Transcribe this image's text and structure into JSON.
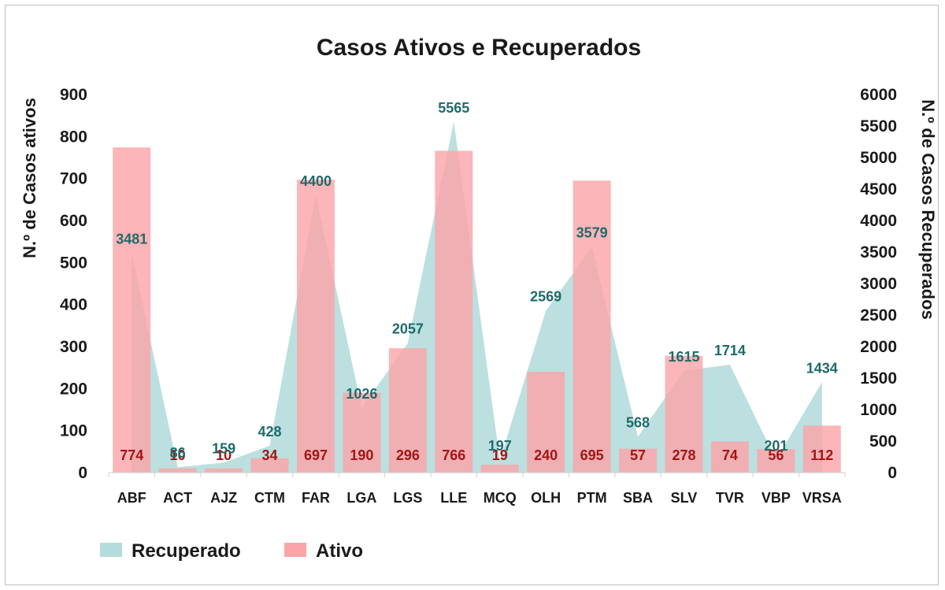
{
  "chart_data": {
    "type": "bar",
    "title": "Casos Ativos e Recuperados",
    "ylabel_left": "N.º de Casos ativos",
    "ylabel_right": "N.º de Casos Recuperados",
    "ylim_left": [
      0,
      900
    ],
    "ylim_right": [
      0,
      6000
    ],
    "yticks_left": [
      "0",
      "100",
      "200",
      "300",
      "400",
      "500",
      "600",
      "700",
      "800",
      "900"
    ],
    "yticks_right": [
      "0",
      "500",
      "1000",
      "1500",
      "2000",
      "2500",
      "3000",
      "3500",
      "4000",
      "4500",
      "5000",
      "5500",
      "6000"
    ],
    "categories": [
      "ABF",
      "ACT",
      "AJZ",
      "CTM",
      "FAR",
      "LGA",
      "LGS",
      "LLE",
      "MCQ",
      "OLH",
      "PTM",
      "SBA",
      "SLV",
      "TVR",
      "VBP",
      "VRSA"
    ],
    "series": [
      {
        "name": "Recuperado",
        "type": "area",
        "axis": "right",
        "color": "#b5dcdc",
        "values": [
          3481,
          86,
          159,
          428,
          4400,
          1026,
          2057,
          5565,
          197,
          2569,
          3579,
          568,
          1615,
          1714,
          201,
          1434
        ]
      },
      {
        "name": "Ativo",
        "type": "bar",
        "axis": "left",
        "color": "#fba5a8",
        "values": [
          774,
          10,
          10,
          34,
          697,
          190,
          296,
          766,
          19,
          240,
          695,
          57,
          278,
          74,
          56,
          112
        ]
      }
    ],
    "legend_position": "bottom-left",
    "grid": false
  }
}
